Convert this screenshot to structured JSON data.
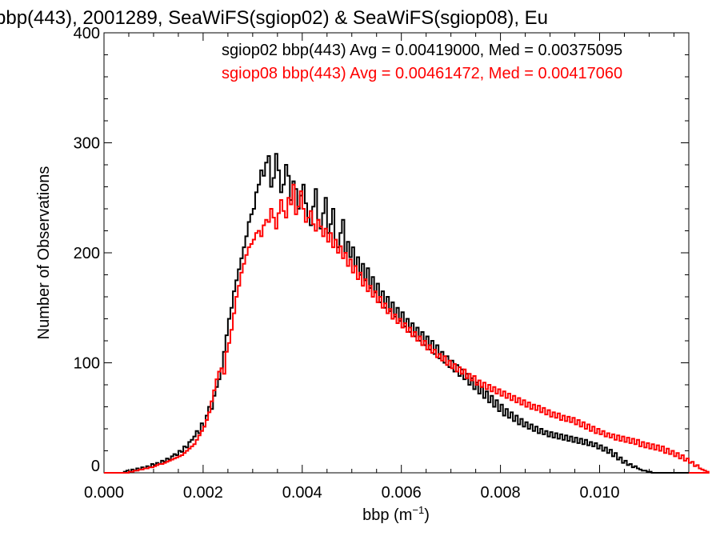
{
  "chart_data": {
    "type": "histogram",
    "title": "bbp(443), 2001289, SeaWiFS(sgiop02) & SeaWiFS(sgiop08), Eu",
    "xlabel_main": "bbp (m",
    "xlabel_sup": "−1",
    "xlabel_close": ")",
    "ylabel": "Number of Observations",
    "xlim": [
      0.0,
      0.0118
    ],
    "ylim": [
      0,
      400
    ],
    "x_ticks": [
      {
        "value": 0.0,
        "label": "0.000"
      },
      {
        "value": 0.002,
        "label": "0.002"
      },
      {
        "value": 0.004,
        "label": "0.004"
      },
      {
        "value": 0.006,
        "label": "0.006"
      },
      {
        "value": 0.008,
        "label": "0.008"
      },
      {
        "value": 0.01,
        "label": "0.010"
      }
    ],
    "y_ticks": [
      {
        "value": 0,
        "label": "0"
      },
      {
        "value": 100,
        "label": "100"
      },
      {
        "value": 200,
        "label": "200"
      },
      {
        "value": 300,
        "label": "300"
      },
      {
        "value": 400,
        "label": "400"
      }
    ],
    "legend": [
      {
        "text": "sgiop02 bbp(443) Avg = 0.00419000, Med = 0.00375095",
        "color": "#000000"
      },
      {
        "text": "sgiop08 bbp(443) Avg = 0.00461472, Med = 0.00417060",
        "color": "#ff0000"
      }
    ],
    "bin_width": 5e-05,
    "series": [
      {
        "name": "sgiop02",
        "color": "#000000",
        "x_start": 0.0004,
        "values": [
          1,
          2,
          1,
          3,
          2,
          4,
          3,
          5,
          4,
          6,
          5,
          8,
          7,
          9,
          8,
          11,
          10,
          13,
          12,
          15,
          17,
          16,
          20,
          19,
          24,
          23,
          28,
          30,
          33,
          38,
          36,
          45,
          42,
          52,
          60,
          58,
          70,
          78,
          85,
          95,
          110,
          125,
          140,
          150,
          165,
          175,
          185,
          195,
          205,
          215,
          228,
          235,
          240,
          255,
          262,
          275,
          270,
          282,
          288,
          260,
          268,
          290,
          275,
          255,
          262,
          280,
          270,
          248,
          265,
          258,
          240,
          252,
          262,
          245,
          232,
          225,
          242,
          258,
          230,
          222,
          236,
          250,
          218,
          226,
          240,
          212,
          205,
          218,
          230,
          200,
          210,
          196,
          205,
          188,
          196,
          180,
          190,
          175,
          186,
          168,
          178,
          164,
          172,
          155,
          165,
          150,
          160,
          147,
          155,
          142,
          150,
          138,
          146,
          133,
          140,
          128,
          136,
          124,
          132,
          120,
          128,
          116,
          124,
          112,
          120,
          108,
          116,
          104,
          110,
          100,
          106,
          96,
          102,
          92,
          98,
          88,
          94,
          85,
          90,
          80,
          86,
          76,
          82,
          72,
          78,
          68,
          74,
          64,
          70,
          60,
          66,
          56,
          62,
          52,
          58,
          50,
          55,
          47,
          52,
          44,
          49,
          42,
          46,
          40,
          44,
          38,
          42,
          36,
          40,
          35,
          38,
          33,
          37,
          32,
          36,
          31,
          35,
          30,
          34,
          29,
          33,
          28,
          32,
          27,
          31,
          26,
          30,
          25,
          28,
          24,
          27,
          22,
          25,
          20,
          23,
          18,
          21,
          15,
          18,
          12,
          14,
          9,
          11,
          7,
          8,
          5,
          6,
          4,
          3,
          2,
          2,
          1,
          1
        ]
      },
      {
        "name": "sgiop08",
        "color": "#ff0000",
        "x_start": 0.0005,
        "values": [
          1,
          1,
          2,
          2,
          3,
          3,
          4,
          4,
          5,
          5,
          6,
          7,
          8,
          8,
          9,
          10,
          11,
          12,
          13,
          14,
          15,
          16,
          18,
          20,
          22,
          24,
          26,
          30,
          34,
          38,
          42,
          48,
          55,
          65,
          75,
          85,
          92,
          95,
          90,
          110,
          118,
          130,
          145,
          160,
          170,
          182,
          190,
          198,
          205,
          208,
          212,
          218,
          220,
          215,
          225,
          230,
          228,
          240,
          232,
          222,
          236,
          248,
          238,
          232,
          250,
          244,
          262,
          235,
          242,
          256,
          240,
          228,
          232,
          238,
          226,
          220,
          230,
          224,
          215,
          222,
          210,
          218,
          205,
          212,
          200,
          206,
          195,
          200,
          188,
          194,
          182,
          188,
          176,
          182,
          170,
          176,
          165,
          170,
          160,
          165,
          155,
          160,
          150,
          154,
          145,
          149,
          140,
          144,
          136,
          140,
          132,
          136,
          128,
          132,
          124,
          128,
          120,
          124,
          116,
          120,
          112,
          116,
          109,
          112,
          105,
          108,
          102,
          106,
          98,
          102,
          95,
          99,
          92,
          96,
          90,
          94,
          86,
          90,
          84,
          88,
          80,
          84,
          78,
          82,
          76,
          80,
          74,
          78,
          72,
          76,
          70,
          74,
          68,
          72,
          66,
          70,
          64,
          68,
          62,
          66,
          60,
          64,
          58,
          62,
          57,
          61,
          55,
          59,
          53,
          57,
          51,
          55,
          50,
          54,
          48,
          52,
          47,
          51,
          46,
          50,
          44,
          48,
          42,
          46,
          40,
          44,
          38,
          42,
          36,
          40,
          35,
          38,
          33,
          36,
          32,
          35,
          30,
          34,
          29,
          33,
          28,
          32,
          27,
          31,
          26,
          30,
          24,
          28,
          23,
          27,
          22,
          26,
          21,
          25,
          20,
          24,
          18,
          22,
          17,
          20,
          15,
          18,
          13,
          16,
          11,
          13,
          9,
          10,
          6,
          7,
          4,
          3,
          2,
          1
        ]
      }
    ]
  }
}
